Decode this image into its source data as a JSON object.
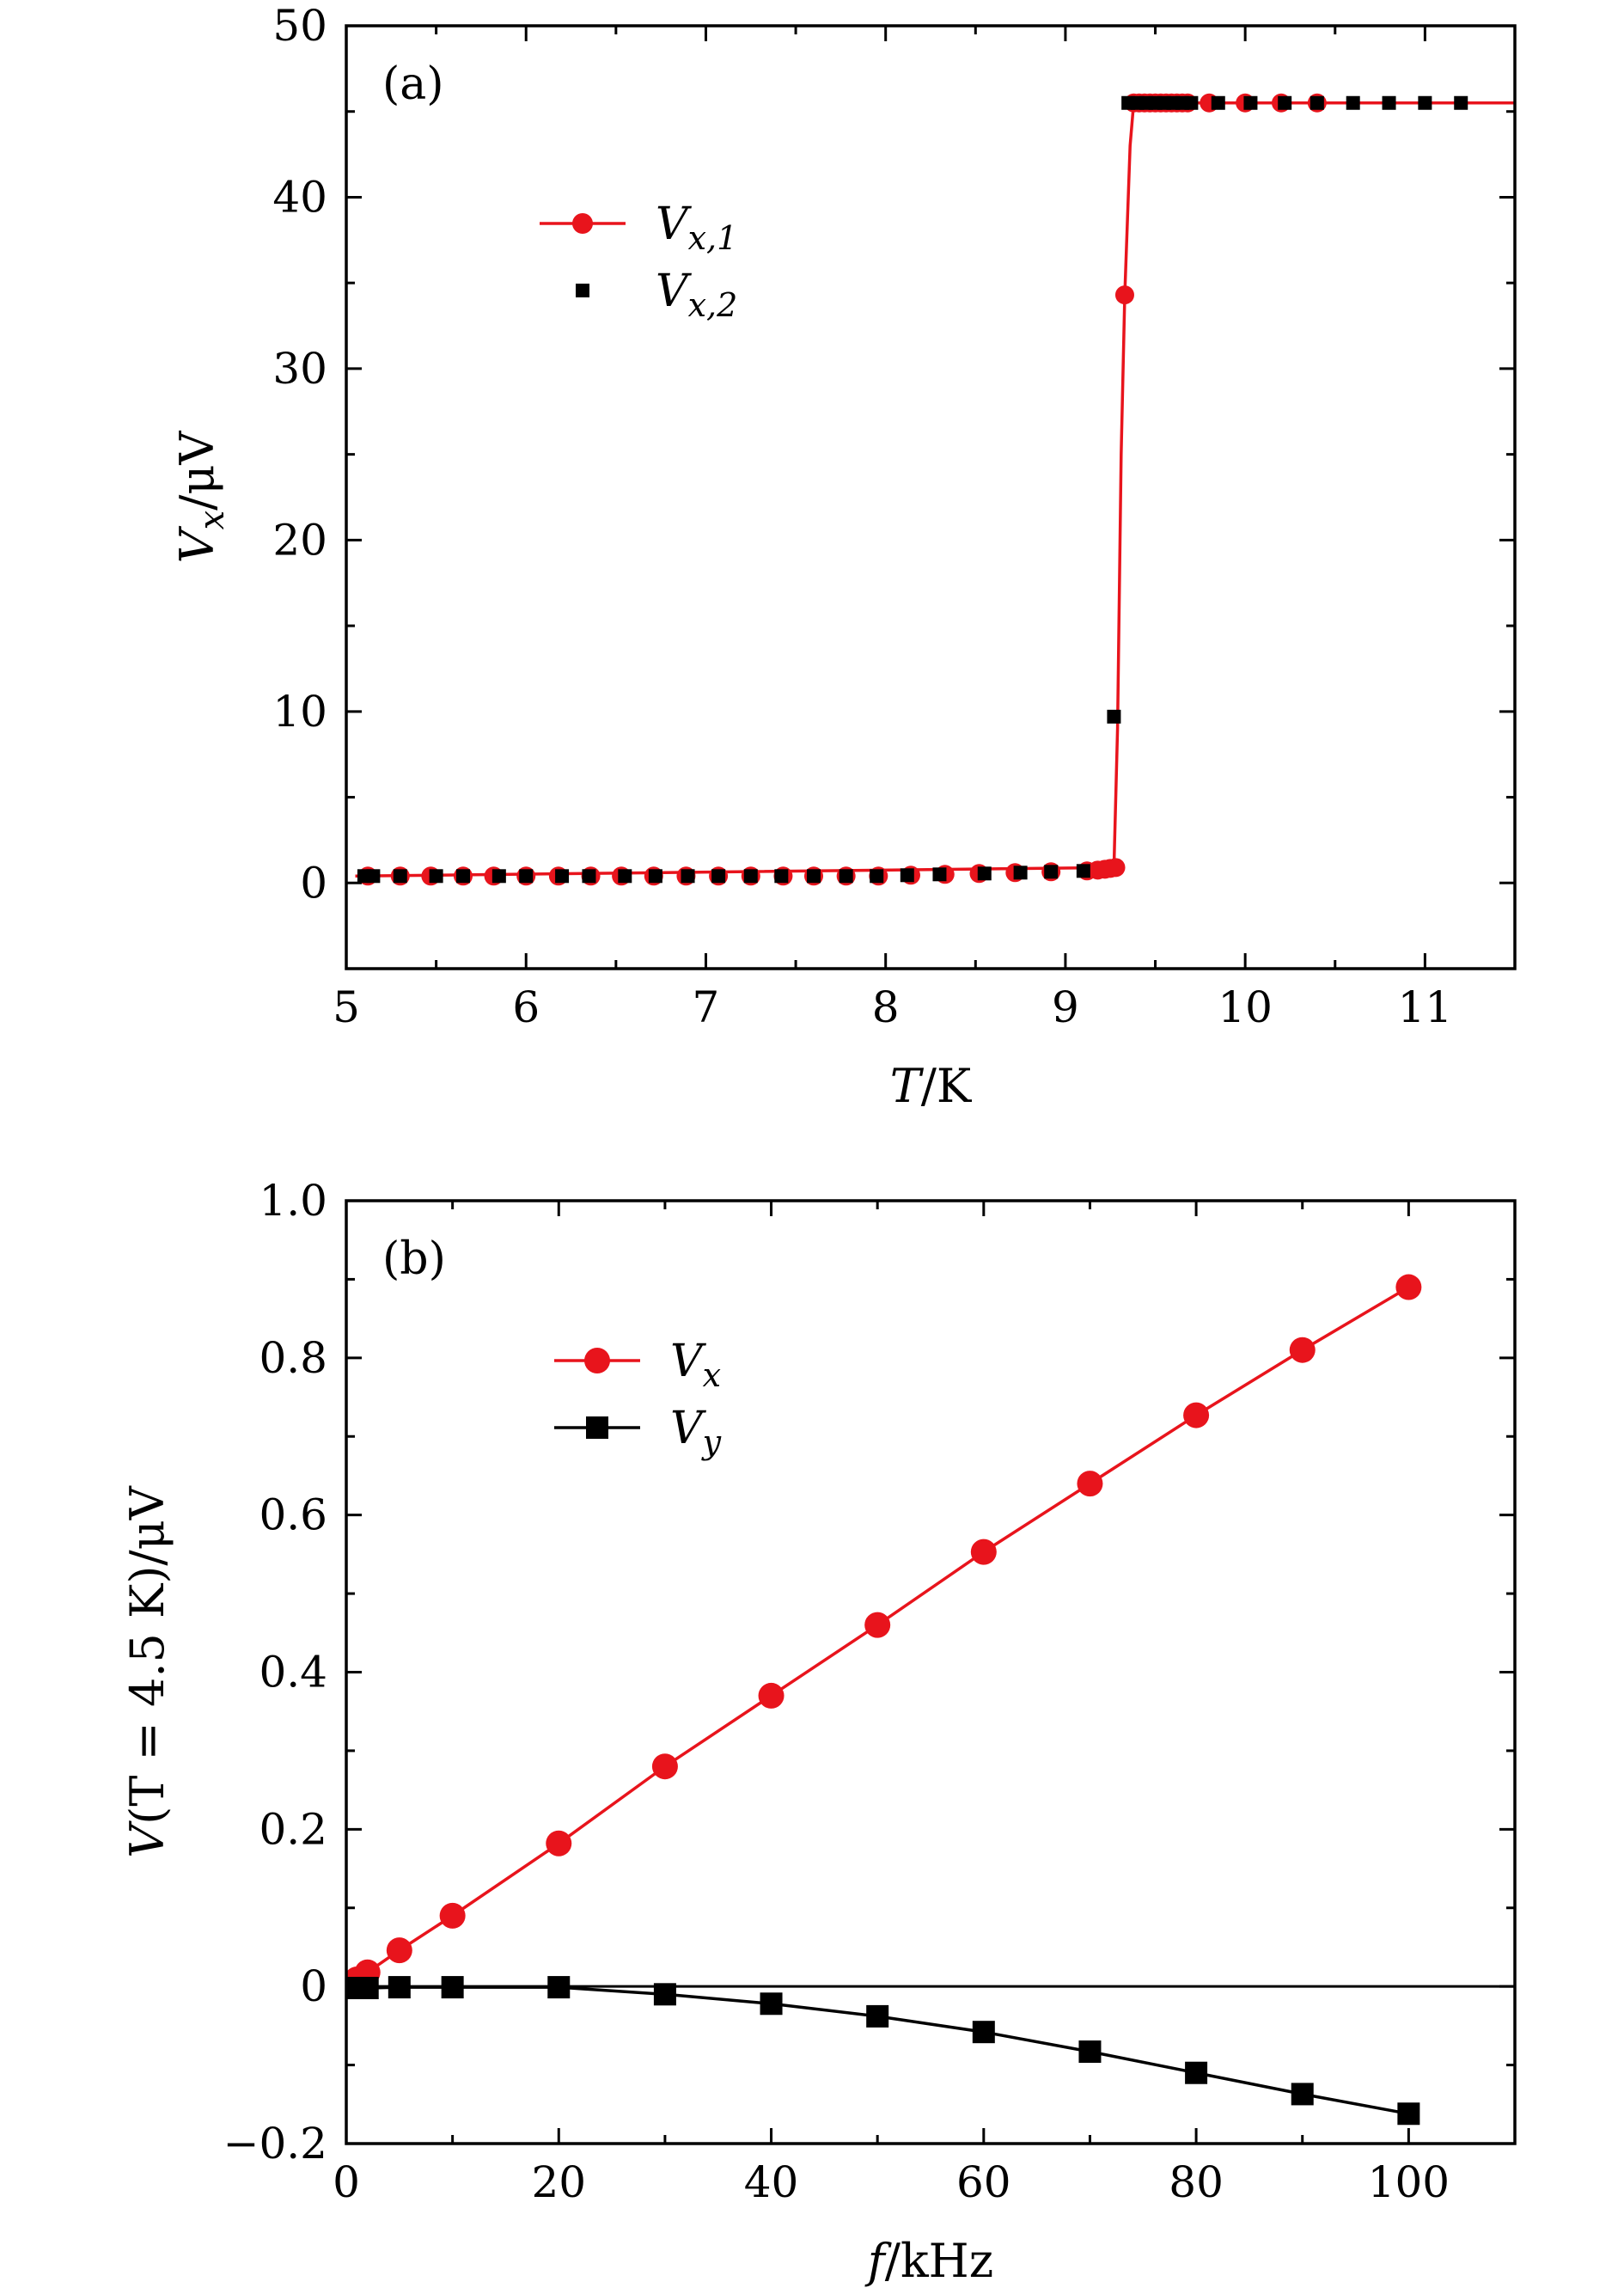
{
  "chart_data": [
    {
      "panel": "(a)",
      "type": "scatter",
      "xlabel_var": "T",
      "xlabel_unit": "/K",
      "ylabel_var": "V",
      "ylabel_sub": "x",
      "ylabel_unit": "/μV",
      "xlim": [
        5,
        11.5
      ],
      "ylim": [
        -5,
        50
      ],
      "xticks": [
        5,
        6,
        7,
        8,
        9,
        10,
        11
      ],
      "xticklabels": [
        "5",
        "6",
        "7",
        "8",
        "9",
        "10",
        "11"
      ],
      "yticks": [
        0,
        10,
        20,
        30,
        40,
        50
      ],
      "yticklabels": [
        "0",
        "10",
        "20",
        "30",
        "40",
        "50"
      ],
      "yminor": [
        5,
        15,
        25,
        35,
        45
      ],
      "legend_position": "upper-left",
      "series": [
        {
          "name": "V",
          "name_sub": "x,1",
          "color": "#e8141c",
          "marker": "circle",
          "line": true,
          "x": [
            5.12,
            5.3,
            5.47,
            5.65,
            5.82,
            6.0,
            6.18,
            6.36,
            6.53,
            6.71,
            6.89,
            7.07,
            7.25,
            7.43,
            7.6,
            7.78,
            7.96,
            8.14,
            8.33,
            8.52,
            8.72,
            8.92,
            9.12,
            9.18,
            9.22,
            9.25,
            9.28,
            9.33,
            9.38,
            9.41,
            9.44,
            9.47,
            9.5,
            9.53,
            9.56,
            9.59,
            9.62,
            9.65,
            9.68,
            9.8,
            10.0,
            10.2,
            10.4
          ],
          "y": [
            0.4,
            0.4,
            0.4,
            0.4,
            0.4,
            0.4,
            0.4,
            0.4,
            0.4,
            0.4,
            0.4,
            0.4,
            0.4,
            0.4,
            0.4,
            0.4,
            0.4,
            0.45,
            0.5,
            0.55,
            0.6,
            0.65,
            0.7,
            0.75,
            0.8,
            0.85,
            0.9,
            34.3,
            45.5,
            45.5,
            45.5,
            45.5,
            45.5,
            45.5,
            45.5,
            45.5,
            45.5,
            45.5,
            45.5,
            45.5,
            45.5,
            45.5,
            45.5
          ],
          "line_x": [
            5.05,
            9.27,
            9.29,
            9.31,
            9.33,
            9.36,
            9.38,
            11.5
          ],
          "line_y": [
            0.4,
            0.9,
            9.0,
            25.0,
            34.3,
            43.0,
            45.5,
            45.5
          ]
        },
        {
          "name": "V",
          "name_sub": "x,2",
          "color": "#000000",
          "marker": "square",
          "line": false,
          "x": [
            5.1,
            5.15,
            5.3,
            5.5,
            5.65,
            5.85,
            6.0,
            6.2,
            6.35,
            6.55,
            6.72,
            6.9,
            7.07,
            7.25,
            7.42,
            7.6,
            7.78,
            7.95,
            8.12,
            8.3,
            8.55,
            8.75,
            8.92,
            9.1,
            9.27,
            9.35,
            9.4,
            9.45,
            9.5,
            9.55,
            9.6,
            9.65,
            9.7,
            9.85,
            10.03,
            10.22,
            10.4,
            10.6,
            10.8,
            11.0,
            11.2
          ],
          "y": [
            0.4,
            0.4,
            0.4,
            0.4,
            0.4,
            0.4,
            0.4,
            0.4,
            0.4,
            0.4,
            0.4,
            0.4,
            0.4,
            0.4,
            0.4,
            0.4,
            0.4,
            0.4,
            0.45,
            0.5,
            0.55,
            0.6,
            0.65,
            0.7,
            9.7,
            45.5,
            45.5,
            45.5,
            45.5,
            45.5,
            45.5,
            45.5,
            45.5,
            45.5,
            45.5,
            45.5,
            45.5,
            45.5,
            45.5,
            45.5,
            45.5
          ]
        }
      ]
    },
    {
      "panel": "(b)",
      "type": "line",
      "xlabel_var": "f",
      "xlabel_unit": "/kHz",
      "ylabel_var": "V",
      "ylabel_mid": "(T = 4.5 K)",
      "ylabel_unit": "/μV",
      "xlim": [
        0,
        110
      ],
      "ylim": [
        -0.2,
        1.0
      ],
      "xticks": [
        0,
        20,
        40,
        60,
        80,
        100
      ],
      "xticklabels": [
        "0",
        "20",
        "40",
        "60",
        "80",
        "100"
      ],
      "yticks": [
        -0.2,
        0.0,
        0.2,
        0.4,
        0.6,
        0.8,
        1.0
      ],
      "yticklabels": [
        "−0.2",
        "0",
        "0.2",
        "0.4",
        "0.6",
        "0.8",
        "1.0"
      ],
      "xminor": [
        10,
        30,
        50,
        70,
        90,
        110
      ],
      "yminor": [
        -0.1,
        0.1,
        0.3,
        0.5,
        0.7,
        0.9
      ],
      "zero_line": true,
      "legend_position": "upper-left",
      "series": [
        {
          "name": "V",
          "name_sub": "x",
          "color": "#e8141c",
          "marker": "circle",
          "x": [
            1,
            2,
            5,
            10,
            20,
            30,
            40,
            50,
            60,
            70,
            80,
            90,
            100
          ],
          "y": [
            0.009,
            0.018,
            0.046,
            0.09,
            0.182,
            0.28,
            0.37,
            0.46,
            0.553,
            0.64,
            0.727,
            0.81,
            0.89
          ]
        },
        {
          "name": "V",
          "name_sub": "y",
          "color": "#000000",
          "marker": "square",
          "x": [
            1,
            2,
            5,
            10,
            20,
            30,
            40,
            50,
            60,
            70,
            80,
            90,
            100
          ],
          "y": [
            -0.002,
            -0.002,
            -0.001,
            -0.001,
            -0.001,
            -0.01,
            -0.022,
            -0.038,
            -0.058,
            -0.083,
            -0.11,
            -0.137,
            -0.162
          ]
        }
      ]
    }
  ]
}
